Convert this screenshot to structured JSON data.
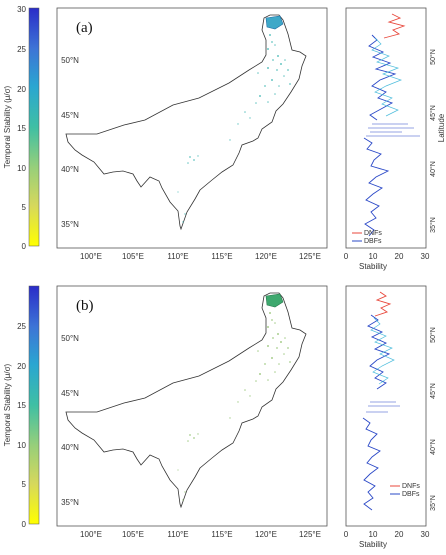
{
  "colorbar": {
    "label": "Temporal Stability (μ/σ)",
    "ticks": [
      "0",
      "5",
      "10",
      "15",
      "20",
      "25",
      "30"
    ],
    "colors": [
      "#ffff00",
      "#d6d85c",
      "#97cf7a",
      "#3fbfa4",
      "#2aa6d1",
      "#3d74d6",
      "#2a2cc8"
    ]
  },
  "panels": [
    {
      "label": "(a)",
      "map": {
        "lon_ticks": [
          "100°E",
          "105°E",
          "110°E",
          "115°E",
          "120°E",
          "125°E"
        ],
        "lat_ticks": [
          "35°N",
          "40°N",
          "45°N",
          "50°N"
        ]
      },
      "profile": {
        "xlabel": "Stability",
        "ylabel": "Latitude",
        "x_ticks": [
          "0",
          "10",
          "20",
          "30"
        ],
        "lat_ticks": [
          "35°N",
          "40°N",
          "45°N",
          "50°N"
        ],
        "legend": [
          "DNFs",
          "DBFs"
        ],
        "legend_colors": [
          "#e8473b",
          "#2a48c7"
        ]
      }
    },
    {
      "label": "(b)",
      "map": {
        "lon_ticks": [
          "100°E",
          "105°E",
          "110°E",
          "115°E",
          "120°E",
          "125°E"
        ],
        "lat_ticks": [
          "35°N",
          "40°N",
          "45°N",
          "50°N"
        ]
      },
      "profile": {
        "xlabel": "Stability",
        "ylabel": "Latitude",
        "x_ticks": [
          "0",
          "10",
          "20",
          "30"
        ],
        "lat_ticks": [
          "35°N",
          "40°N",
          "45°N",
          "50°N"
        ],
        "legend": [
          "DNFs",
          "DBFs"
        ],
        "legend_colors": [
          "#e8473b",
          "#2a48c7"
        ]
      }
    }
  ]
}
